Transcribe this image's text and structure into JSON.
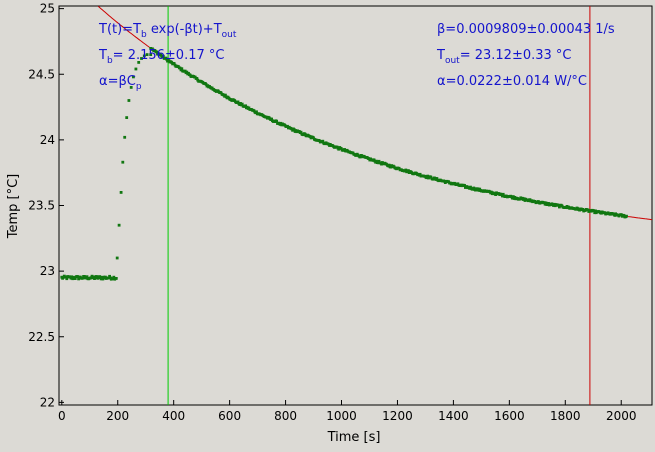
{
  "chart_data": {
    "type": "scatter",
    "xlabel": "Time [s]",
    "ylabel": "Temp [°C]",
    "xlim": [
      -10,
      2110
    ],
    "ylim": [
      21.98,
      25.02
    ],
    "xticks": [
      0,
      200,
      400,
      600,
      800,
      1000,
      1200,
      1400,
      1600,
      1800,
      2000
    ],
    "yticks": [
      22,
      22.5,
      23,
      23.5,
      24,
      24.5,
      25
    ],
    "ytick_labels": [
      "22",
      "22.5",
      "23",
      "23.5",
      "24",
      "24.5",
      "25"
    ],
    "grid": false,
    "vlines": [
      {
        "x": 380,
        "color": "#00cc00"
      },
      {
        "x": 1888,
        "color": "#cc0000"
      }
    ],
    "fit": {
      "color": "#cc0000",
      "Tb": 2.156,
      "beta": 0.0009809,
      "Tout": 23.12,
      "x_range": [
        50,
        2110
      ]
    },
    "series": [
      {
        "color": "#117711",
        "baseline": {
          "x_range": [
            0,
            195
          ],
          "y": 22.95,
          "jitter": 0.012
        },
        "heating": {
          "x": [
            198,
            205,
            212,
            218,
            225,
            232,
            240,
            248,
            256,
            265,
            275,
            285,
            295,
            305,
            318
          ],
          "y": [
            23.1,
            23.35,
            23.6,
            23.83,
            24.02,
            24.17,
            24.3,
            24.4,
            24.48,
            24.54,
            24.59,
            24.62,
            24.64,
            24.65,
            24.65
          ]
        },
        "decay": {
          "x_range": [
            318,
            2020
          ],
          "jitter": 0.008
        }
      }
    ],
    "annotations": {
      "fit_eq_pre": "T(t)=T",
      "fit_eq_sub_b": "b",
      "fit_eq_mid": " exp(-βt)+T",
      "fit_eq_sub_out": "out",
      "tb_pre": "T",
      "tb_sub": "b",
      "tb_post": "= 2.156±0.17 °C",
      "alpha_def_pre": "α=βC",
      "alpha_def_sub": "p",
      "beta_value": "β=0.0009809±0.00043 1/s",
      "tout_pre": "T",
      "tout_sub": "out",
      "tout_post": "= 23.12±0.33 °C",
      "alpha_value": "α=0.0222±0.014 W/°C"
    }
  }
}
